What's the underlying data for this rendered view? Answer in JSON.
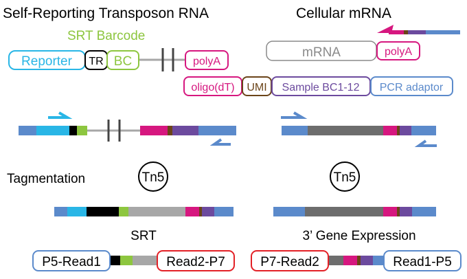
{
  "titles": {
    "srt_rna": "Self-Reporting Transposon RNA",
    "cellular_mrna": "Cellular mRNA",
    "srt_barcode": "SRT Barcode"
  },
  "construct": {
    "reporter": "Reporter",
    "tr": "TR",
    "bc": "BC",
    "polya_srt": "polyA",
    "mrna": "mRNA",
    "polya_mrna": "polyA"
  },
  "capture": {
    "oligo_dt": "oligo(dT)",
    "umi": "UMI",
    "sample_bc": "Sample BC1-12",
    "pcr_adaptor": "PCR adaptor"
  },
  "steps": {
    "tagmentation": "Tagmentation",
    "tn5_left": "Tn5",
    "tn5_right": "Tn5",
    "srt_label": "SRT",
    "gene_expression_label": "3’ Gene Expression"
  },
  "reads": {
    "p5_read1": "P5-Read1",
    "read2_p7": "Read2-P7",
    "p7_read2": "P7-Read2",
    "read1_p5": "Read1-P5"
  },
  "colors": {
    "reporter": "#29b6e6",
    "tr": "#000000",
    "bc": "#8dc63f",
    "polya": "#d6177f",
    "umi": "#6b4419",
    "sample_bc": "#6c4a9e",
    "pcr_adaptor": "#5b8acb",
    "mrna": "#6d6d6d",
    "linker": "#a7a7a7",
    "p7_box": "#e32026"
  }
}
